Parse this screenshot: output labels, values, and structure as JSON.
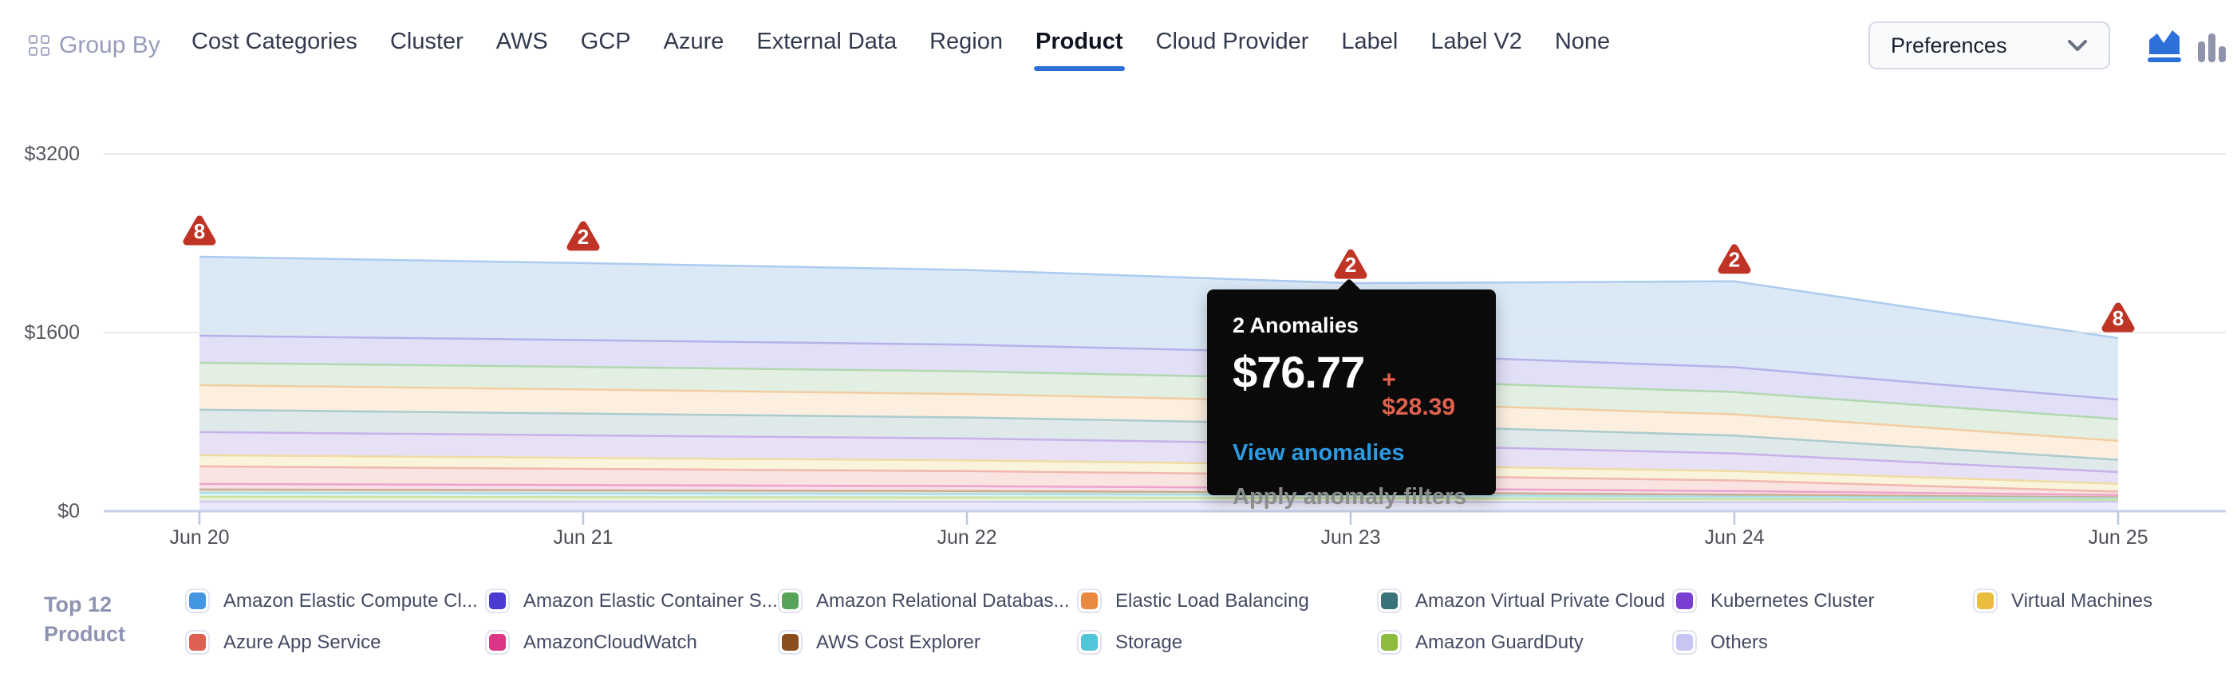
{
  "topbar": {
    "group_by_label": "Group By",
    "tabs": [
      {
        "label": "Cost Categories",
        "active": false
      },
      {
        "label": "Cluster",
        "active": false
      },
      {
        "label": "AWS",
        "active": false
      },
      {
        "label": "GCP",
        "active": false
      },
      {
        "label": "Azure",
        "active": false
      },
      {
        "label": "External Data",
        "active": false
      },
      {
        "label": "Region",
        "active": false
      },
      {
        "label": "Product",
        "active": true
      },
      {
        "label": "Cloud Provider",
        "active": false
      },
      {
        "label": "Label",
        "active": false
      },
      {
        "label": "Label V2",
        "active": false
      },
      {
        "label": "None",
        "active": false
      }
    ],
    "preferences_label": "Preferences",
    "chart_type_toggle": {
      "area_chart_selected": true,
      "active_color": "#2e70d9",
      "inactive_color": "#9094ab"
    }
  },
  "tooltip": {
    "anchored_day": "Jun 23",
    "title": "2 Anomalies",
    "value": "$76.77",
    "delta": "+ $28.39",
    "link_label": "View anomalies",
    "action_label": "Apply anomaly filters",
    "delta_color": "#e2604e",
    "link_color": "#2d9be2",
    "action_color": "#8c8c8c"
  },
  "legend": {
    "header_line1": "Top 12",
    "header_line2": "Product"
  },
  "chart_data": {
    "type": "area",
    "stacked": true,
    "x_labels": [
      "Jun 20",
      "Jun 21",
      "Jun 22",
      "Jun 23",
      "Jun 24",
      "Jun 25"
    ],
    "y_ticks": [
      {
        "label": "$0",
        "value": 0
      },
      {
        "label": "$1600",
        "value": 1600
      },
      {
        "label": "$3200",
        "value": 3200
      }
    ],
    "ylim": [
      0,
      3200
    ],
    "grid": true,
    "legend_position": "bottom",
    "series": [
      {
        "name": "Amazon Elastic Compute Cl...",
        "slug": "amazon-elastic-compute-cloud",
        "swatch": "#4397e2",
        "fill": "#dbe9f7",
        "line": "#a9c9ee",
        "values": [
          707,
          690,
          670,
          630,
          770,
          550
        ]
      },
      {
        "name": "Amazon Elastic Container S...",
        "slug": "amazon-elastic-container-service",
        "swatch": "#4a3ad0",
        "fill": "#e2e0f6",
        "line": "#b4afe8",
        "values": [
          243,
          240,
          238,
          232,
          222,
          175
        ]
      },
      {
        "name": "Amazon Relational Databas...",
        "slug": "amazon-relational-database",
        "swatch": "#56a359",
        "fill": "#e3efe3",
        "line": "#aed6ae",
        "values": [
          200,
          202,
          204,
          203,
          200,
          195
        ]
      },
      {
        "name": "Elastic Load Balancing",
        "slug": "elastic-load-balancing",
        "swatch": "#e8893f",
        "fill": "#fcefe0",
        "line": "#f0cb9e",
        "values": [
          221,
          216,
          210,
          200,
          190,
          170
        ]
      },
      {
        "name": "Amazon Virtual Private Cloud",
        "slug": "amazon-virtual-private-cloud",
        "swatch": "#397278",
        "fill": "#dfe9ea",
        "line": "#a8c8cb",
        "values": [
          200,
          195,
          188,
          178,
          160,
          110
        ]
      },
      {
        "name": "Kubernetes Cluster",
        "slug": "kubernetes-cluster",
        "swatch": "#7a3fd0",
        "fill": "#e8e1f6",
        "line": "#c5aee8",
        "values": [
          207,
          202,
          196,
          184,
          158,
          105
        ]
      },
      {
        "name": "Virtual Machines",
        "slug": "virtual-machines",
        "swatch": "#eabd3f",
        "fill": "#faf4dd",
        "line": "#eeda9e",
        "values": [
          100,
          98,
          96,
          92,
          84,
          70
        ]
      },
      {
        "name": "Azure App Service",
        "slug": "azure-app-service",
        "swatch": "#dd6052",
        "fill": "#f9e4e1",
        "line": "#f0b4ac",
        "values": [
          157,
          145,
          135,
          118,
          95,
          30
        ]
      },
      {
        "name": "AmazonCloudWatch",
        "slug": "amazoncloudwatch",
        "swatch": "#dc3585",
        "fill": "#f7dfec",
        "line": "#ec9fc8",
        "values": [
          50,
          47,
          44,
          38,
          32,
          20
        ]
      },
      {
        "name": "AWS Cost Explorer",
        "slug": "aws-cost-explorer",
        "swatch": "#8a4d1e",
        "fill": "#ede4da",
        "line": "#c9a989",
        "values": [
          29,
          27,
          25,
          22,
          18,
          10
        ]
      },
      {
        "name": "Storage",
        "slug": "storage",
        "swatch": "#52c5d8",
        "fill": "#e0f3f7",
        "line": "#a5dde8",
        "values": [
          36,
          34,
          32,
          28,
          22,
          13
        ]
      },
      {
        "name": "Amazon GuardDuty",
        "slug": "amazon-guardduty",
        "swatch": "#8cbb3d",
        "fill": "#eaf3da",
        "line": "#c9df9f",
        "values": [
          43,
          41,
          39,
          35,
          28,
          18
        ]
      },
      {
        "name": "Others",
        "slug": "others",
        "swatch": "#c7c5f2",
        "fill": "#ebeafa",
        "line": "#cbc8f0",
        "values": [
          86,
          85,
          84,
          82,
          80,
          84
        ]
      }
    ],
    "anomaly_markers": [
      {
        "x_label": "Jun 20",
        "day_index": 0,
        "count": 8
      },
      {
        "x_label": "Jun 21",
        "day_index": 1,
        "count": 2
      },
      {
        "x_label": "Jun 23",
        "day_index": 3,
        "count": 2
      },
      {
        "x_label": "Jun 24",
        "day_index": 4,
        "count": 2
      },
      {
        "x_label": "Jun 25",
        "day_index": 5,
        "count": 8
      }
    ],
    "marker_color": "#bf3425",
    "gridline_color": "#e4e5e9",
    "axis_line_color": "#c6cfe9"
  }
}
